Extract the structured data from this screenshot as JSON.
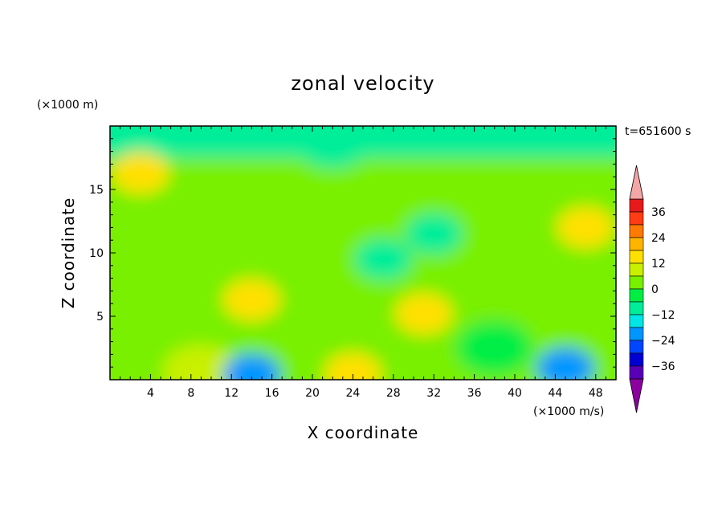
{
  "chart_data": {
    "type": "heatmap",
    "title": "zonal velocity",
    "xlabel": "X coordinate",
    "ylabel": "Z coordinate",
    "x_unit": "(×1000 m/s)",
    "y_unit": "(×1000 m)",
    "time_label": "t=651600 s",
    "xlim": [
      0,
      50
    ],
    "ylim": [
      0,
      20
    ],
    "x_ticks": [
      4,
      8,
      12,
      16,
      20,
      24,
      28,
      32,
      36,
      40,
      44,
      48
    ],
    "y_ticks": [
      5,
      10,
      15
    ],
    "colorbar": {
      "min": -42,
      "max": 42,
      "step": 6,
      "tick_values": [
        36,
        24,
        12,
        0,
        -12,
        -24,
        -36
      ],
      "tick_labels": [
        "36",
        "24",
        "12",
        "0",
        "−12",
        "−24",
        "−36"
      ],
      "levels": [
        {
          "from": 36,
          "to": 42,
          "color": "#e61a1a"
        },
        {
          "from": 30,
          "to": 36,
          "color": "#ff3c14"
        },
        {
          "from": 24,
          "to": 30,
          "color": "#ff7a00"
        },
        {
          "from": 18,
          "to": 24,
          "color": "#ffb400"
        },
        {
          "from": 12,
          "to": 18,
          "color": "#ffe000"
        },
        {
          "from": 6,
          "to": 12,
          "color": "#c8f000"
        },
        {
          "from": 0,
          "to": 6,
          "color": "#78f000"
        },
        {
          "from": -6,
          "to": 0,
          "color": "#00ee44"
        },
        {
          "from": -12,
          "to": -6,
          "color": "#00ee99"
        },
        {
          "from": -18,
          "to": -12,
          "color": "#00e6e6"
        },
        {
          "from": -24,
          "to": -18,
          "color": "#0096ff"
        },
        {
          "from": -30,
          "to": -24,
          "color": "#0046ff"
        },
        {
          "from": -36,
          "to": -30,
          "color": "#0000d2"
        },
        {
          "from": -42,
          "to": -36,
          "color": "#5a00b4"
        }
      ],
      "over_color": "#f4a6a6",
      "under_color": "#8c00a0"
    },
    "features": [
      {
        "x": 3,
        "z": 16.3,
        "value": 13
      },
      {
        "x": 47,
        "z": 12,
        "value": 14
      },
      {
        "x": 14,
        "z": 6.3,
        "value": 13
      },
      {
        "x": 31,
        "z": 5.2,
        "value": 13
      },
      {
        "x": 24,
        "z": 0.5,
        "value": 12
      },
      {
        "x": 9,
        "z": 0.6,
        "value": 6
      },
      {
        "x": 45,
        "z": 0.9,
        "value": -22
      },
      {
        "x": 14,
        "z": 0.4,
        "value": -20
      },
      {
        "x": 27,
        "z": 9.5,
        "value": -12
      },
      {
        "x": 32,
        "z": 11.5,
        "value": -12
      },
      {
        "x": 22,
        "z": 18.8,
        "value": -10
      },
      {
        "x": 25,
        "z": 14,
        "value": 1
      },
      {
        "x": 8,
        "z": 11,
        "value": 0
      },
      {
        "x": 38,
        "z": 2.5,
        "value": -4
      }
    ]
  }
}
